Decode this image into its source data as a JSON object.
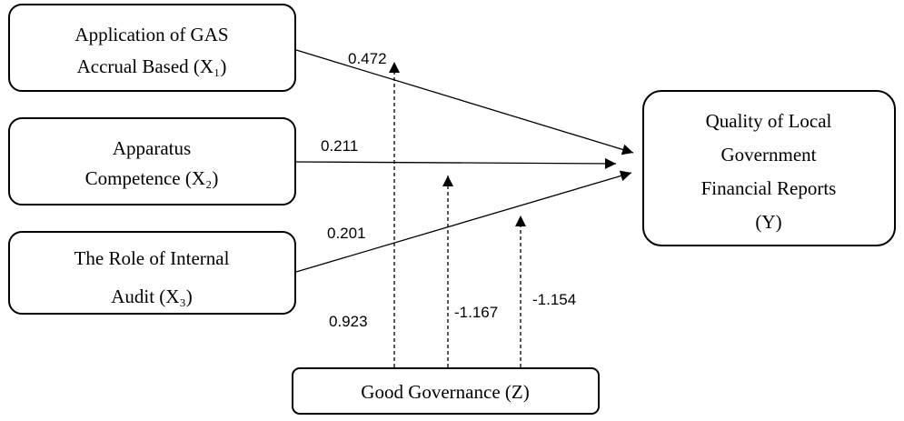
{
  "nodes": [
    {
      "lines": [
        "Application of GAS",
        "Accrual Based (X₁)"
      ]
    },
    {
      "lines": [
        "Apparatus",
        "Competence (X₂)"
      ]
    },
    {
      "lines": [
        "The Role of Internal",
        "Audit (X₃)"
      ]
    },
    {
      "lines": [
        "Quality of Local",
        "Government",
        "Financial Reports",
        "(Y)"
      ]
    },
    {
      "lines": [
        "Good Governance (Z)"
      ]
    }
  ],
  "edges": [
    {
      "label": 0.472
    },
    {
      "label": 0.211
    },
    {
      "label": 0.201
    },
    {
      "label": 0.923
    },
    {
      "label": -1.167
    },
    {
      "label": -1.154
    }
  ]
}
